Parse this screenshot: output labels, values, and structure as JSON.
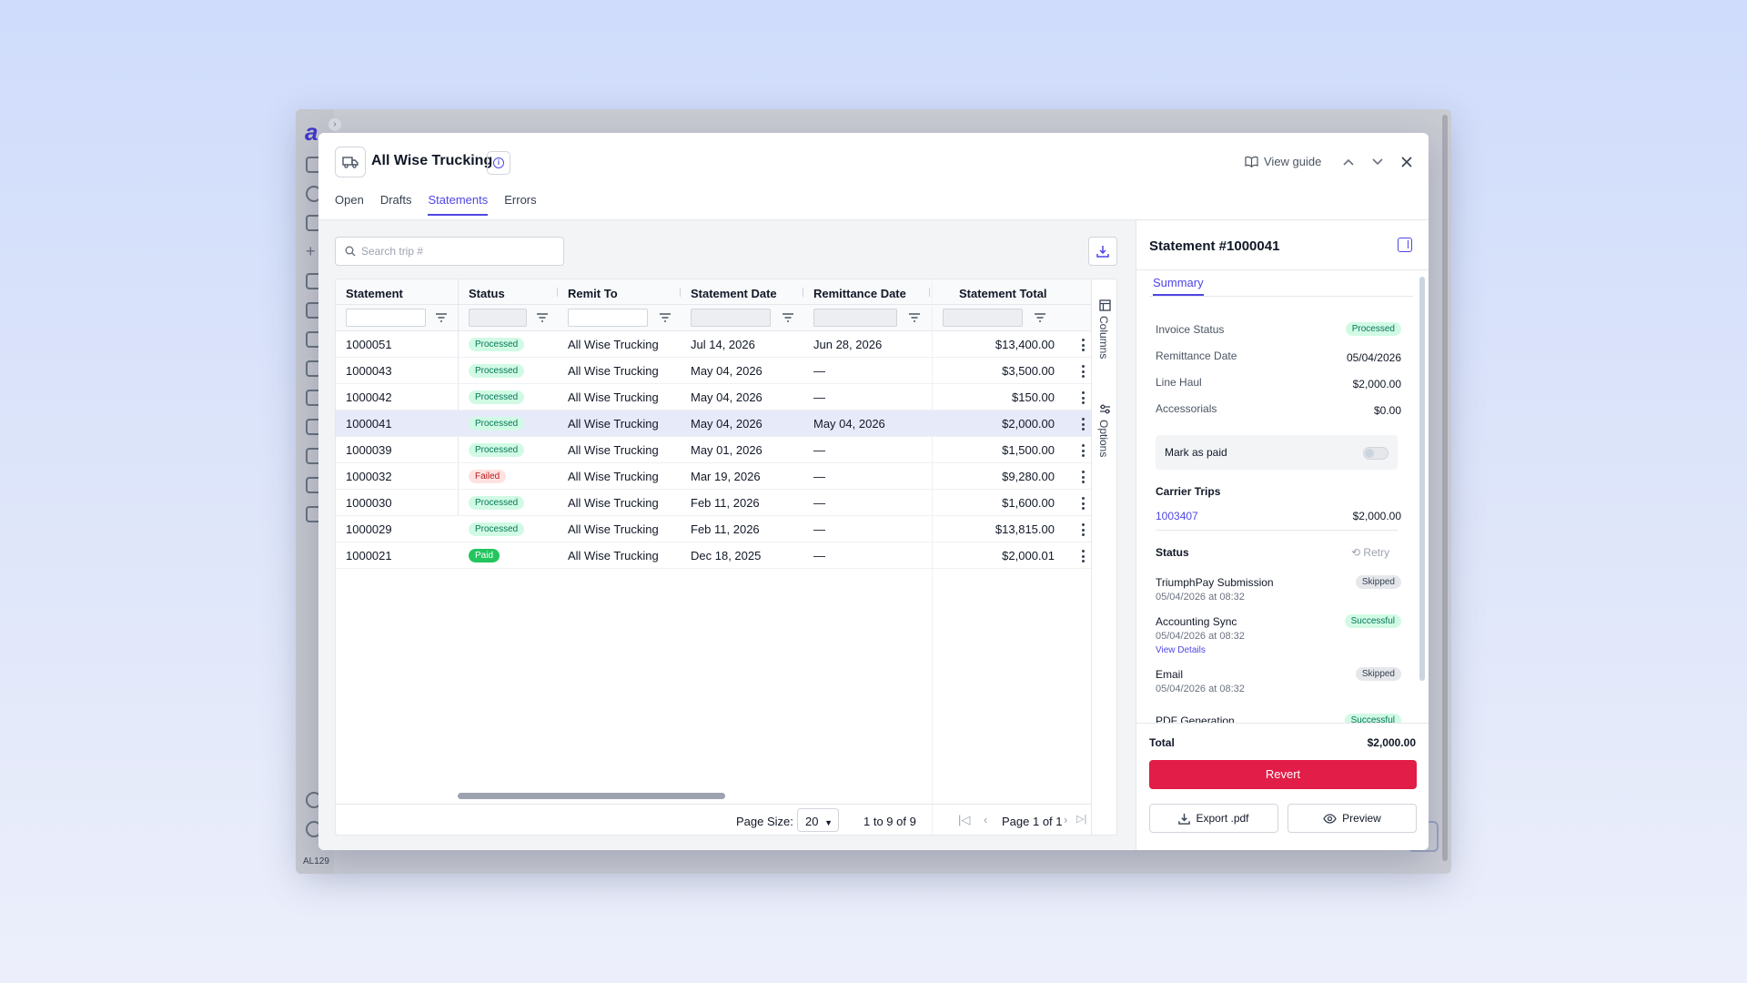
{
  "app": {
    "user_code": "AL129",
    "sidebar_icons": [
      "home-icon",
      "search-icon",
      "signal-icon",
      "plus-icon",
      "route-icon",
      "statement-icon",
      "list-icon",
      "book-icon",
      "hierarchy-icon",
      "truck-icon",
      "building-icon",
      "shield-icon",
      "bookmark-icon",
      "help-icon",
      "user-icon"
    ]
  },
  "modal": {
    "title": "All Wise Trucking",
    "view_guide": "View guide",
    "tabs": [
      {
        "label": "Open",
        "active": false
      },
      {
        "label": "Drafts",
        "active": false
      },
      {
        "label": "Statements",
        "active": true
      },
      {
        "label": "Errors",
        "active": false
      }
    ]
  },
  "search": {
    "placeholder": "Search trip #"
  },
  "grid": {
    "columns": [
      "Statement",
      "Status",
      "Remit To",
      "Statement Date",
      "Remittance Date",
      "Statement Total"
    ],
    "rows": [
      {
        "statement": "1000051",
        "status": "Processed",
        "status_type": "processed",
        "remit_to": "All Wise Trucking",
        "statement_date": "Jul 14, 2026",
        "remittance_date": "Jun 28, 2026",
        "total": "$13,400.00",
        "selected": false
      },
      {
        "statement": "1000043",
        "status": "Processed",
        "status_type": "processed",
        "remit_to": "All Wise Trucking",
        "statement_date": "May 04, 2026",
        "remittance_date": "—",
        "total": "$3,500.00",
        "selected": false
      },
      {
        "statement": "1000042",
        "status": "Processed",
        "status_type": "processed",
        "remit_to": "All Wise Trucking",
        "statement_date": "May 04, 2026",
        "remittance_date": "—",
        "total": "$150.00",
        "selected": false
      },
      {
        "statement": "1000041",
        "status": "Processed",
        "status_type": "processed",
        "remit_to": "All Wise Trucking",
        "statement_date": "May 04, 2026",
        "remittance_date": "May 04, 2026",
        "total": "$2,000.00",
        "selected": true
      },
      {
        "statement": "1000039",
        "status": "Processed",
        "status_type": "processed",
        "remit_to": "All Wise Trucking",
        "statement_date": "May 01, 2026",
        "remittance_date": "—",
        "total": "$1,500.00",
        "selected": false
      },
      {
        "statement": "1000032",
        "status": "Failed",
        "status_type": "failed",
        "remit_to": "All Wise Trucking",
        "statement_date": "Mar 19, 2026",
        "remittance_date": "—",
        "total": "$9,280.00",
        "selected": false
      },
      {
        "statement": "1000030",
        "status": "Processed",
        "status_type": "processed",
        "remit_to": "All Wise Trucking",
        "statement_date": "Feb 11, 2026",
        "remittance_date": "—",
        "total": "$1,600.00",
        "selected": false
      },
      {
        "statement": "1000029",
        "status": "Processed",
        "status_type": "processed",
        "remit_to": "All Wise Trucking",
        "statement_date": "Feb 11, 2026",
        "remittance_date": "—",
        "total": "$13,815.00",
        "selected": false
      },
      {
        "statement": "1000021",
        "status": "Paid",
        "status_type": "paid",
        "remit_to": "All Wise Trucking",
        "statement_date": "Dec 18, 2025",
        "remittance_date": "—",
        "total": "$2,000.01",
        "selected": false
      }
    ],
    "side_labels": [
      "Columns",
      "Options"
    ],
    "pager": {
      "page_size_label": "Page Size:",
      "page_size": "20",
      "range": "1 to 9 of 9",
      "page_label": "Page 1 of 1"
    }
  },
  "panel": {
    "title": "Statement #1000041",
    "tab": "Summary",
    "details": [
      {
        "label": "Invoice Status",
        "value": "Processed",
        "badge": true
      },
      {
        "label": "Remittance Date",
        "value": "05/04/2026",
        "badge": false
      },
      {
        "label": "Line Haul",
        "value": "$2,000.00",
        "badge": false
      },
      {
        "label": "Accessorials",
        "value": "$0.00",
        "badge": false
      }
    ],
    "mark_as_paid": "Mark as paid",
    "carrier_trips_title": "Carrier Trips",
    "carrier_trip": {
      "id": "1003407",
      "amount": "$2,000.00"
    },
    "status_title": "Status",
    "retry": "Retry",
    "status_items": [
      {
        "name": "TriumphPay Submission",
        "date": "05/04/2026 at 08:32",
        "badge": "Skipped",
        "type": "skipped",
        "link": ""
      },
      {
        "name": "Accounting Sync",
        "date": "05/04/2026 at 08:32",
        "badge": "Successful",
        "type": "successful",
        "link": "View Details"
      },
      {
        "name": "Email",
        "date": "05/04/2026 at 08:32",
        "badge": "Skipped",
        "type": "skipped",
        "link": ""
      },
      {
        "name": "PDF Generation",
        "date": "",
        "badge": "Successful",
        "type": "successful",
        "link": ""
      }
    ],
    "total_label": "Total",
    "total_value": "$2,000.00",
    "revert": "Revert",
    "export": "Export .pdf",
    "preview": "Preview"
  }
}
